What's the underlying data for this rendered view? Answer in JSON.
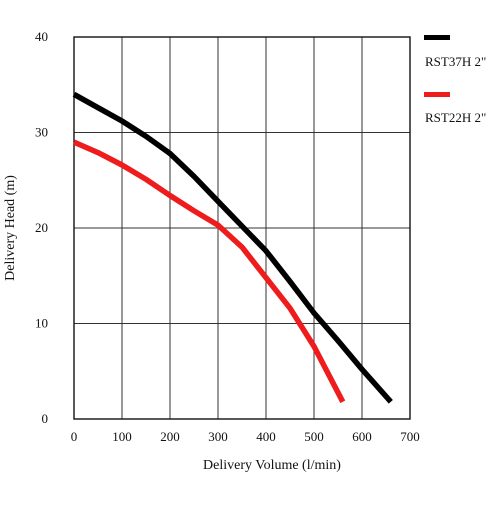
{
  "chart_data": {
    "type": "line",
    "title": "",
    "xlabel": "Delivery Volume (l/min)",
    "ylabel": "Delivery Head (m)",
    "xlim": [
      0,
      700
    ],
    "ylim": [
      0,
      40
    ],
    "xticks": [
      0,
      100,
      200,
      300,
      400,
      500,
      600,
      700
    ],
    "yticks": [
      0,
      10,
      20,
      30,
      40
    ],
    "grid": true,
    "legend_position": "right",
    "series": [
      {
        "name": "RST37H 2\"",
        "color": "#000000",
        "points": [
          [
            0,
            34
          ],
          [
            50,
            32.6
          ],
          [
            100,
            31.2
          ],
          [
            150,
            29.6
          ],
          [
            200,
            27.8
          ],
          [
            250,
            25.4
          ],
          [
            300,
            22.8
          ],
          [
            350,
            20.2
          ],
          [
            400,
            17.6
          ],
          [
            450,
            14.4
          ],
          [
            500,
            11.1
          ],
          [
            550,
            8.2
          ],
          [
            600,
            5.2
          ],
          [
            660,
            1.8
          ]
        ]
      },
      {
        "name": "RST22H 2\"",
        "color": "#ee1c1c",
        "points": [
          [
            0,
            29
          ],
          [
            50,
            27.9
          ],
          [
            100,
            26.6
          ],
          [
            150,
            25.1
          ],
          [
            200,
            23.4
          ],
          [
            250,
            21.8
          ],
          [
            300,
            20.3
          ],
          [
            350,
            18.0
          ],
          [
            400,
            14.8
          ],
          [
            450,
            11.6
          ],
          [
            500,
            7.6
          ],
          [
            560,
            1.8
          ]
        ]
      }
    ]
  }
}
